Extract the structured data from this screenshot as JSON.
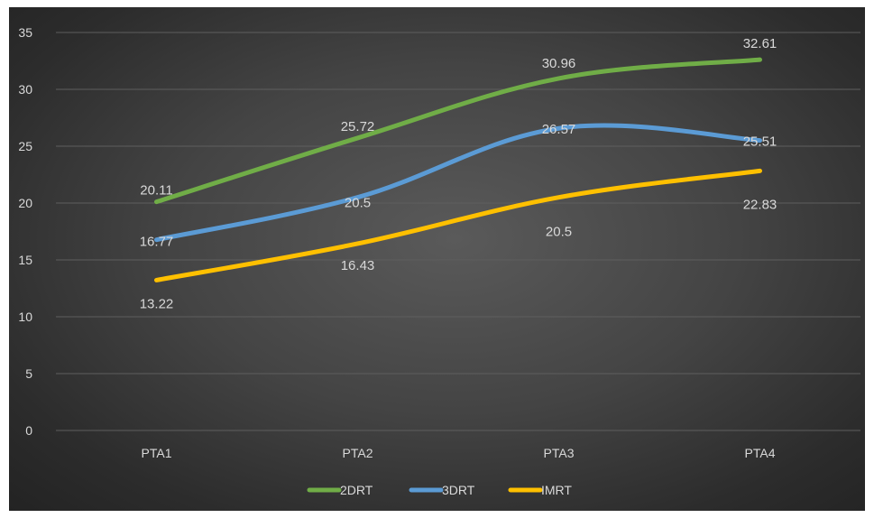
{
  "chart_data": {
    "type": "line",
    "categories": [
      "PTA1",
      "PTA2",
      "PTA3",
      "PTA4"
    ],
    "series": [
      {
        "name": "2DRT",
        "values": [
          20.11,
          25.72,
          30.96,
          32.61
        ],
        "color": "#70ad47",
        "labels": [
          "20.11",
          "25.72",
          "30.96",
          "32.61"
        ]
      },
      {
        "name": "3DRT",
        "values": [
          16.77,
          20.5,
          26.57,
          25.51
        ],
        "color": "#5b9bd5",
        "labels": [
          "16.77",
          "20.5",
          "26.57",
          "25.51"
        ]
      },
      {
        "name": "IMRT",
        "values": [
          13.22,
          16.43,
          20.5,
          22.83
        ],
        "color": "#ffc000",
        "labels": [
          "13.22",
          "16.43",
          "20.5",
          "22.83"
        ]
      }
    ],
    "ylim": [
      0,
      35
    ],
    "yticks": [
      "0",
      "5",
      "10",
      "15",
      "20",
      "25",
      "30",
      "35"
    ],
    "smooth": true,
    "grid": true,
    "legend": "bottom",
    "background": "dark gradient"
  }
}
